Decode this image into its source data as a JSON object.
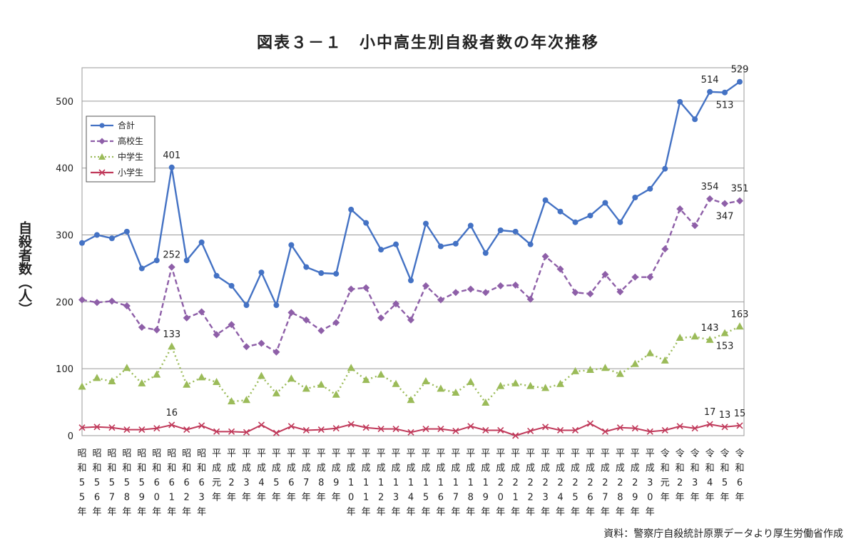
{
  "chart_data": {
    "type": "line",
    "title": "図表３－１　小中高生別自殺者数の年次推移",
    "ylabel": "自殺者数（人）",
    "source": "資料：警察庁自殺統計原票データより厚生労働省作成",
    "ylim": [
      0,
      550
    ],
    "yticks": [
      0,
      100,
      200,
      300,
      400,
      500
    ],
    "grid": true,
    "legend_position": "top-left",
    "categories": [
      "昭和55年",
      "昭和56年",
      "昭和57年",
      "昭和58年",
      "昭和59年",
      "昭和60年",
      "昭和61年",
      "昭和62年",
      "昭和63年",
      "平成元年",
      "平成2年",
      "平成3年",
      "平成4年",
      "平成5年",
      "平成6年",
      "平成7年",
      "平成8年",
      "平成9年",
      "平成10年",
      "平成11年",
      "平成12年",
      "平成13年",
      "平成14年",
      "平成15年",
      "平成16年",
      "平成17年",
      "平成18年",
      "平成19年",
      "平成20年",
      "平成21年",
      "平成22年",
      "平成23年",
      "平成24年",
      "平成25年",
      "平成26年",
      "平成27年",
      "平成28年",
      "平成29年",
      "平成30年",
      "令和元年",
      "令和2年",
      "令和3年",
      "令和4年",
      "令和5年",
      "令和6年"
    ],
    "series": [
      {
        "name": "合計",
        "color": "#4472c4",
        "dash": "solid",
        "marker": "circle",
        "values": [
          288,
          300,
          295,
          305,
          250,
          262,
          401,
          262,
          289,
          239,
          224,
          195,
          244,
          195,
          285,
          252,
          243,
          242,
          338,
          318,
          278,
          286,
          232,
          317,
          283,
          287,
          314,
          273,
          307,
          305,
          286,
          352,
          335,
          319,
          329,
          348,
          319,
          356,
          369,
          399,
          499,
          473,
          514,
          513,
          529
        ]
      },
      {
        "name": "高校生",
        "color": "#8e5fa8",
        "dash": "dashed",
        "marker": "diamond",
        "values": [
          203,
          199,
          201,
          194,
          162,
          158,
          252,
          176,
          185,
          151,
          166,
          133,
          138,
          125,
          184,
          173,
          157,
          169,
          219,
          221,
          176,
          197,
          173,
          224,
          203,
          214,
          219,
          214,
          224,
          225,
          204,
          268,
          249,
          214,
          212,
          241,
          215,
          237,
          237,
          279,
          339,
          314,
          354,
          347,
          351
        ]
      },
      {
        "name": "中学生",
        "color": "#9bbb59",
        "dash": "dotted",
        "marker": "triangle",
        "values": [
          73,
          86,
          81,
          101,
          78,
          91,
          133,
          76,
          87,
          80,
          51,
          53,
          89,
          63,
          85,
          70,
          76,
          61,
          101,
          83,
          91,
          77,
          53,
          81,
          70,
          64,
          80,
          49,
          74,
          78,
          74,
          71,
          77,
          96,
          98,
          101,
          92,
          107,
          123,
          112,
          146,
          148,
          143,
          153,
          163
        ]
      },
      {
        "name": "小学生",
        "color": "#c0395a",
        "dash": "solid",
        "marker": "x",
        "values": [
          12,
          13,
          12,
          9,
          9,
          11,
          16,
          9,
          15,
          6,
          6,
          5,
          16,
          4,
          14,
          8,
          9,
          11,
          17,
          12,
          10,
          10,
          5,
          10,
          10,
          7,
          14,
          8,
          8,
          0,
          7,
          13,
          8,
          8,
          18,
          6,
          12,
          11,
          6,
          8,
          14,
          11,
          17,
          13,
          15
        ]
      }
    ],
    "annotations": [
      {
        "series": 0,
        "index": 6,
        "text": "401",
        "pos": "above"
      },
      {
        "series": 0,
        "index": 42,
        "text": "514",
        "pos": "above"
      },
      {
        "series": 0,
        "index": 43,
        "text": "513",
        "pos": "below"
      },
      {
        "series": 0,
        "index": 44,
        "text": "529",
        "pos": "above"
      },
      {
        "series": 1,
        "index": 6,
        "text": "252",
        "pos": "above"
      },
      {
        "series": 1,
        "index": 42,
        "text": "354",
        "pos": "above"
      },
      {
        "series": 1,
        "index": 43,
        "text": "347",
        "pos": "below"
      },
      {
        "series": 1,
        "index": 44,
        "text": "351",
        "pos": "above"
      },
      {
        "series": 2,
        "index": 6,
        "text": "133",
        "pos": "above"
      },
      {
        "series": 2,
        "index": 42,
        "text": "143",
        "pos": "above"
      },
      {
        "series": 2,
        "index": 43,
        "text": "153",
        "pos": "below"
      },
      {
        "series": 2,
        "index": 44,
        "text": "163",
        "pos": "above"
      },
      {
        "series": 3,
        "index": 6,
        "text": "16",
        "pos": "above"
      },
      {
        "series": 3,
        "index": 42,
        "text": "17",
        "pos": "above"
      },
      {
        "series": 3,
        "index": 43,
        "text": "13",
        "pos": "above"
      },
      {
        "series": 3,
        "index": 44,
        "text": "15",
        "pos": "above"
      }
    ]
  }
}
